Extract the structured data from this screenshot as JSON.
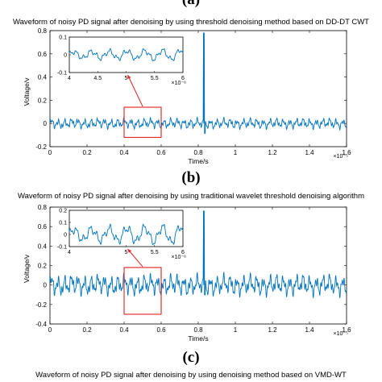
{
  "panels": [
    {
      "letter": "(a)",
      "title": "Waveform of noisy PD signal after denoising by using threshold denoising method based on DD-DT CWT",
      "chart_data": {
        "type": "line",
        "xlabel": "Time/s",
        "ylabel": "Voltage/v",
        "xlim": [
          0,
          1.6
        ],
        "ylim": [
          -0.2,
          0.8
        ],
        "x_ticks": [
          "0",
          "0.2",
          "0.4",
          "0.6",
          "0.8",
          "1",
          "1.2",
          "1.4",
          "1.6"
        ],
        "y_ticks": [
          "-0.2",
          "0",
          "0.2",
          "0.4",
          "0.6",
          "0.8"
        ],
        "x_exponent": "×10⁻⁵",
        "series_color": "#0072bd",
        "noise_amplitude": 0.045,
        "spike": {
          "x": 0.83,
          "peak": 0.78,
          "trough": -0.17
        },
        "highlight_box": {
          "x": [
            0.4,
            0.6
          ],
          "y": [
            -0.12,
            0.14
          ],
          "color": "#e02020"
        },
        "inset": {
          "xlim": [
            4,
            6
          ],
          "ylim": [
            -0.1,
            0.1
          ],
          "x_ticks": [
            "4",
            "4.5",
            "5",
            "5.5",
            "6"
          ],
          "y_ticks": [
            "-0.1",
            "0",
            "0.1"
          ],
          "x_exponent": "×10⁻⁶",
          "amplitude": 0.045
        }
      }
    },
    {
      "letter": "(b)",
      "title": "Waveform of noisy PD signal after denoising by using traditional wavelet threshold denoising algorithm",
      "chart_data": {
        "type": "line",
        "xlabel": "Time/s",
        "ylabel": "Voltage/v",
        "xlim": [
          0,
          1.6
        ],
        "ylim": [
          -0.4,
          0.8
        ],
        "x_ticks": [
          "0",
          "0.2",
          "0.4",
          "0.6",
          "0.8",
          "1",
          "1.2",
          "1.4",
          "1.6"
        ],
        "y_ticks": [
          "-0.4",
          "-0.2",
          "0",
          "0.2",
          "0.4",
          "0.6",
          "0.8"
        ],
        "x_exponent": "×10⁻⁵",
        "series_color": "#0072bd",
        "noise_amplitude": 0.11,
        "spike": {
          "x": 0.83,
          "peak": 0.76,
          "trough": -0.2
        },
        "highlight_box": {
          "x": [
            0.4,
            0.6
          ],
          "y": [
            -0.3,
            0.18
          ],
          "color": "#e02020"
        },
        "inset": {
          "xlim": [
            4,
            6
          ],
          "ylim": [
            -0.1,
            0.2
          ],
          "x_ticks": [
            "4",
            "5",
            "5.5",
            "6"
          ],
          "x_tick_values": [
            4,
            5,
            5.5,
            6
          ],
          "y_ticks": [
            "-0.1",
            "0",
            "0.1",
            "0.2"
          ],
          "x_exponent": "×10⁻⁶",
          "amplitude": 0.11
        }
      }
    }
  ],
  "panel_c": {
    "letter": "(c)",
    "title": "Waveform of noisy PD signal after denoising by using denoising method based on VMD-WT"
  }
}
